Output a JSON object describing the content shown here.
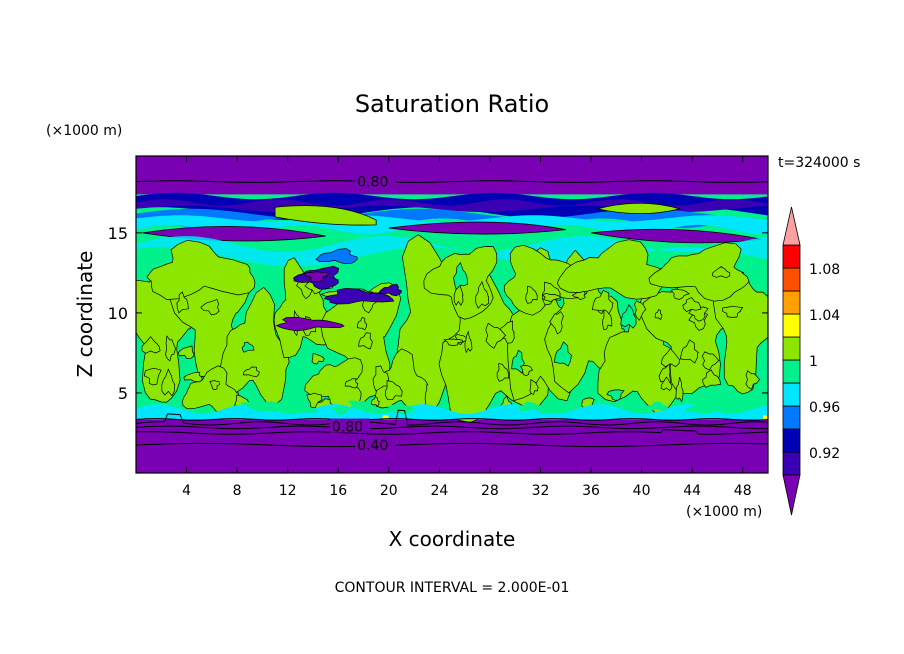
{
  "chart_data": {
    "type": "heatmap",
    "title": "Saturation Ratio",
    "xlabel": "X coordinate",
    "ylabel": "Z coordinate",
    "x_unit": "(×1000 m)",
    "y_unit": "(×1000 m)",
    "time_label": "t=324000 s",
    "footer": "CONTOUR INTERVAL = 2.000E-01",
    "xlim": [
      0,
      50
    ],
    "ylim": [
      0,
      19.8
    ],
    "x_ticks": [
      4,
      8,
      12,
      16,
      20,
      24,
      28,
      32,
      36,
      40,
      44,
      48
    ],
    "y_ticks": [
      5,
      10,
      15
    ],
    "contour_labels": [
      {
        "text": "0.80",
        "x": 17.5,
        "z": 18.2
      },
      {
        "text": "0.80",
        "x": 15.5,
        "z": 2.9
      },
      {
        "text": "0.40",
        "x": 17.5,
        "z": 1.75
      }
    ],
    "colorbar": {
      "levels": [
        0.9,
        0.92,
        0.94,
        0.96,
        0.98,
        1.0,
        1.02,
        1.04,
        1.06,
        1.08,
        1.1
      ],
      "labels": [
        "0.92",
        "0.96",
        "1",
        "1.04",
        "1.08"
      ],
      "colors": [
        "#7a00b4",
        "#3a00b4",
        "#0000b4",
        "#0078ff",
        "#00e6ff",
        "#00f08c",
        "#8ce600",
        "#ffff00",
        "#ffa000",
        "#ff5000",
        "#ff0000",
        "#ffa0a0"
      ]
    },
    "regions": {
      "lower_dry": {
        "z": [
          0,
          3.35
        ],
        "value": 0.4
      },
      "mid_layer": {
        "z": [
          3.35,
          15.3
        ],
        "value": 0.99
      },
      "upper_band": {
        "z": [
          15.3,
          17.4
        ],
        "value": 0.93
      },
      "top_dry": {
        "z": [
          17.4,
          19.8
        ],
        "value": 0.7
      }
    }
  }
}
